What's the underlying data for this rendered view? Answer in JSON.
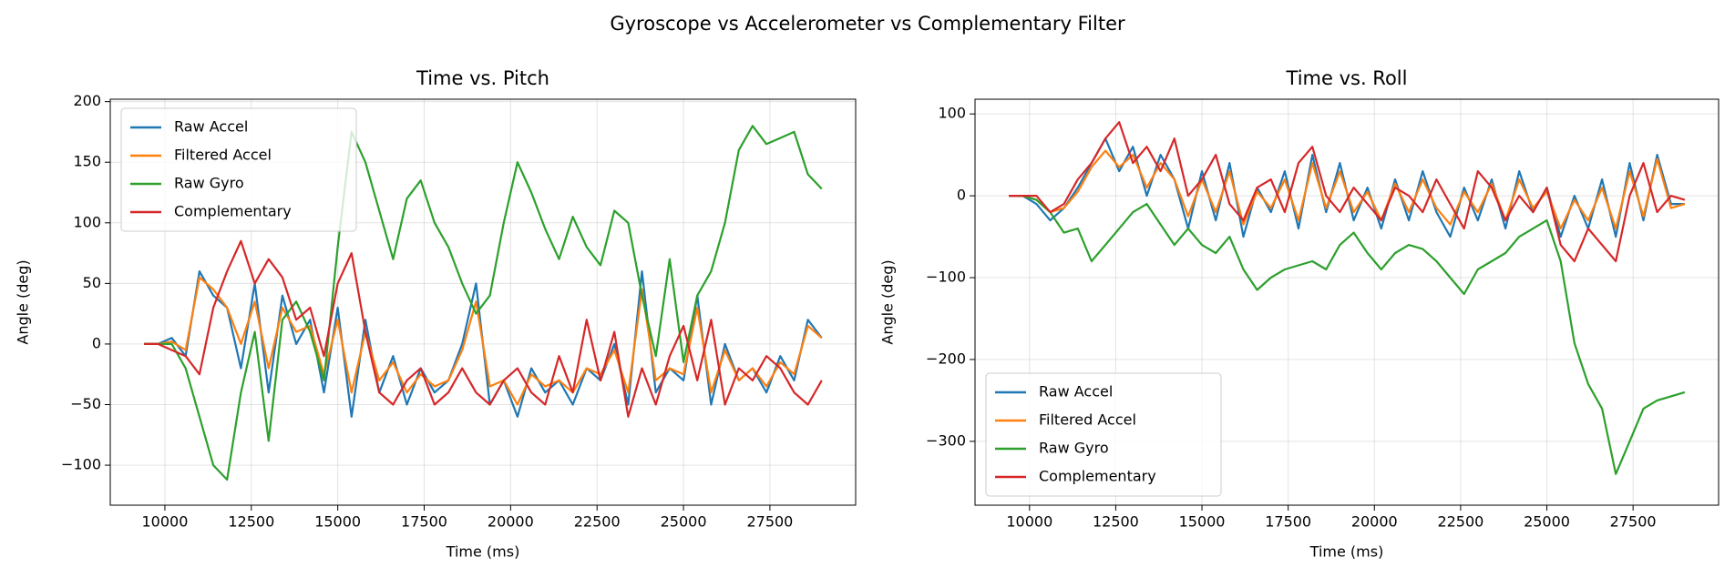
{
  "title": "Gyroscope vs Accelerometer vs Complementary Filter",
  "chart_data": [
    {
      "type": "line",
      "title": "Time vs. Pitch",
      "xlabel": "Time (ms)",
      "ylabel": "Angle (deg)",
      "x": [
        9400,
        9800,
        10200,
        10600,
        11000,
        11400,
        11800,
        12200,
        12600,
        13000,
        13400,
        13800,
        14200,
        14600,
        15000,
        15400,
        15800,
        16200,
        16600,
        17000,
        17400,
        17800,
        18200,
        18600,
        19000,
        19400,
        19800,
        20200,
        20600,
        21000,
        21400,
        21800,
        22200,
        22600,
        23000,
        23400,
        23800,
        24200,
        24600,
        25000,
        25400,
        25800,
        26200,
        26600,
        27000,
        27400,
        27800,
        28200,
        28600,
        29000
      ],
      "series": [
        {
          "name": "Raw Accel",
          "color": "#1f77b4",
          "values": [
            0,
            0,
            5,
            -10,
            60,
            40,
            30,
            -20,
            50,
            -40,
            40,
            0,
            20,
            -40,
            30,
            -60,
            20,
            -40,
            -10,
            -50,
            -20,
            -40,
            -30,
            0,
            50,
            -50,
            -30,
            -60,
            -20,
            -40,
            -30,
            -50,
            -20,
            -30,
            0,
            -50,
            60,
            -40,
            -20,
            -30,
            40,
            -50,
            0,
            -30,
            -20,
            -40,
            -10,
            -30,
            20,
            5
          ]
        },
        {
          "name": "Filtered Accel",
          "color": "#ff7f0e",
          "values": [
            0,
            0,
            2,
            -5,
            55,
            45,
            30,
            0,
            35,
            -20,
            30,
            10,
            15,
            -25,
            20,
            -40,
            10,
            -30,
            -15,
            -40,
            -25,
            -35,
            -30,
            -5,
            35,
            -35,
            -30,
            -50,
            -25,
            -35,
            -30,
            -40,
            -20,
            -25,
            -5,
            -40,
            45,
            -30,
            -20,
            -25,
            30,
            -40,
            -5,
            -30,
            -20,
            -35,
            -15,
            -25,
            15,
            5
          ]
        },
        {
          "name": "Raw Gyro",
          "color": "#2ca02c",
          "values": [
            0,
            0,
            0,
            -20,
            -60,
            -100,
            -112,
            -40,
            10,
            -80,
            20,
            35,
            10,
            -30,
            80,
            175,
            150,
            110,
            70,
            120,
            135,
            100,
            80,
            50,
            25,
            40,
            100,
            150,
            125,
            95,
            70,
            105,
            80,
            65,
            110,
            100,
            40,
            -10,
            70,
            -15,
            40,
            60,
            100,
            160,
            180,
            165,
            170,
            175,
            140,
            128
          ]
        },
        {
          "name": "Complementary",
          "color": "#d62728",
          "values": [
            0,
            0,
            -5,
            -10,
            -25,
            30,
            60,
            85,
            50,
            70,
            55,
            20,
            30,
            -10,
            50,
            75,
            10,
            -40,
            -50,
            -30,
            -20,
            -50,
            -40,
            -20,
            -40,
            -50,
            -30,
            -20,
            -40,
            -50,
            -10,
            -40,
            20,
            -30,
            10,
            -60,
            -20,
            -50,
            -10,
            15,
            -30,
            20,
            -50,
            -20,
            -30,
            -10,
            -20,
            -40,
            -50,
            -30
          ]
        }
      ],
      "xlim": [
        8420,
        29980
      ],
      "ylim": [
        -133,
        202
      ],
      "xticks": [
        10000,
        12500,
        15000,
        17500,
        20000,
        22500,
        25000,
        27500
      ],
      "yticks": [
        {
          "value": -100,
          "label": "−100"
        },
        {
          "value": -50,
          "label": "−50"
        },
        0,
        50,
        100,
        150,
        200
      ],
      "grid": true,
      "legend": "upper left"
    },
    {
      "type": "line",
      "title": "Time vs. Roll",
      "xlabel": "Time (ms)",
      "ylabel": "Angle (deg)",
      "x": [
        9400,
        9800,
        10200,
        10600,
        11000,
        11400,
        11800,
        12200,
        12600,
        13000,
        13400,
        13800,
        14200,
        14600,
        15000,
        15400,
        15800,
        16200,
        16600,
        17000,
        17400,
        17800,
        18200,
        18600,
        19000,
        19400,
        19800,
        20200,
        20600,
        21000,
        21400,
        21800,
        22200,
        22600,
        23000,
        23400,
        23800,
        24200,
        24600,
        25000,
        25400,
        25800,
        26200,
        26600,
        27000,
        27400,
        27800,
        28200,
        28600,
        29000
      ],
      "series": [
        {
          "name": "Raw Accel",
          "color": "#1f77b4",
          "values": [
            0,
            0,
            -10,
            -30,
            -15,
            10,
            40,
            70,
            30,
            60,
            0,
            50,
            20,
            -40,
            30,
            -30,
            40,
            -50,
            10,
            -20,
            30,
            -40,
            50,
            -20,
            40,
            -30,
            10,
            -40,
            20,
            -30,
            30,
            -20,
            -50,
            10,
            -30,
            20,
            -40,
            30,
            -20,
            10,
            -50,
            0,
            -40,
            20,
            -50,
            40,
            -30,
            50,
            -10,
            -10
          ]
        },
        {
          "name": "Filtered Accel",
          "color": "#ff7f0e",
          "values": [
            0,
            0,
            -5,
            -20,
            -15,
            5,
            35,
            55,
            35,
            50,
            10,
            40,
            20,
            -25,
            20,
            -20,
            30,
            -35,
            5,
            -15,
            20,
            -30,
            40,
            -15,
            30,
            -20,
            5,
            -30,
            15,
            -20,
            20,
            -15,
            -35,
            5,
            -20,
            15,
            -30,
            20,
            -15,
            5,
            -40,
            -5,
            -30,
            10,
            -40,
            30,
            -25,
            45,
            -15,
            -10
          ]
        },
        {
          "name": "Raw Gyro",
          "color": "#2ca02c",
          "values": [
            0,
            0,
            -5,
            -20,
            -45,
            -40,
            -80,
            -60,
            -40,
            -20,
            -10,
            -35,
            -60,
            -40,
            -60,
            -70,
            -50,
            -90,
            -115,
            -100,
            -90,
            -85,
            -80,
            -90,
            -60,
            -45,
            -70,
            -90,
            -70,
            -60,
            -65,
            -80,
            -100,
            -120,
            -90,
            -80,
            -70,
            -50,
            -40,
            -30,
            -80,
            -180,
            -230,
            -260,
            -340,
            -300,
            -260,
            -250,
            -245,
            -240
          ]
        },
        {
          "name": "Complementary",
          "color": "#d62728",
          "values": [
            0,
            0,
            0,
            -20,
            -10,
            20,
            40,
            70,
            90,
            40,
            60,
            30,
            70,
            0,
            20,
            50,
            -10,
            -30,
            10,
            20,
            -20,
            40,
            60,
            0,
            -20,
            10,
            -10,
            -30,
            10,
            0,
            -20,
            20,
            -10,
            -40,
            30,
            10,
            -30,
            0,
            -20,
            10,
            -60,
            -80,
            -40,
            -60,
            -80,
            0,
            40,
            -20,
            0,
            -5
          ]
        }
      ],
      "xlim": [
        8420,
        29980
      ],
      "ylim": [
        -378,
        118
      ],
      "xticks": [
        10000,
        12500,
        15000,
        17500,
        20000,
        22500,
        25000,
        27500
      ],
      "yticks": [
        {
          "value": -300,
          "label": "−300"
        },
        {
          "value": -200,
          "label": "−200"
        },
        {
          "value": -100,
          "label": "−100"
        },
        0,
        100
      ],
      "grid": true,
      "legend": "lower left"
    }
  ]
}
